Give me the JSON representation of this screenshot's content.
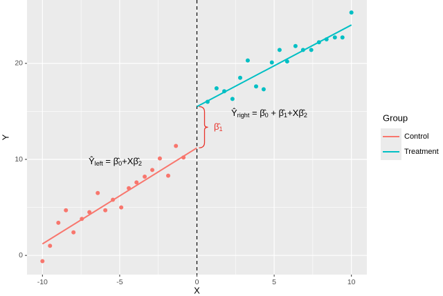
{
  "chart_data": {
    "type": "scatter",
    "x_label": "X",
    "y_label": "Y",
    "xlim": [
      -11,
      11
    ],
    "ylim": [
      -2,
      26.6
    ],
    "xticks": [
      -10,
      -5,
      0,
      5,
      10
    ],
    "yticks": [
      0,
      10,
      20
    ],
    "grid": true,
    "cutoff": 0,
    "legend_title": "Group",
    "legend_position": "right",
    "series": [
      {
        "name": "Control",
        "color": "#F8766D",
        "x": [
          -10,
          -9.51,
          -8.97,
          -8.48,
          -7.99,
          -7.45,
          -6.96,
          -6.42,
          -5.93,
          -5.44,
          -4.9,
          -4.41,
          -3.91,
          -3.38,
          -2.89,
          -2.4,
          -1.86,
          -1.36,
          -0.87
        ],
        "values": [
          -0.6,
          1.0,
          3.4,
          4.7,
          2.4,
          3.8,
          4.5,
          6.5,
          4.7,
          5.8,
          5.0,
          7.0,
          7.6,
          8.2,
          8.9,
          10.1,
          8.3,
          11.4,
          10.2
        ],
        "fit": {
          "x": [
            -10,
            0
          ],
          "y": [
            1.2,
            11.2
          ]
        }
      },
      {
        "name": "Treatment",
        "color": "#00BFC4",
        "x": [
          0.69,
          1.27,
          1.77,
          2.3,
          2.8,
          3.29,
          3.83,
          4.32,
          4.85,
          5.35,
          5.84,
          6.38,
          6.87,
          7.4,
          7.9,
          8.39,
          8.93,
          9.42,
          10
        ],
        "values": [
          16.0,
          17.4,
          17.1,
          16.3,
          18.5,
          20.3,
          17.6,
          17.3,
          20.1,
          21.4,
          20.2,
          21.8,
          21.4,
          21.4,
          22.2,
          22.5,
          22.7,
          22.7,
          25.3
        ],
        "fit": {
          "x": [
            0,
            10
          ],
          "y": [
            15.5,
            24.0
          ]
        }
      }
    ],
    "annotations": [
      {
        "parts": [
          "Ŷ",
          "left",
          " = β̂",
          "0",
          "+Xβ̂",
          "2"
        ]
      },
      {
        "parts": [
          "Ŷ",
          "right",
          " = β̂",
          "0",
          " + β̂",
          "1",
          "+Xβ̂",
          "2"
        ]
      },
      {
        "parts": [
          "β̂",
          "1"
        ],
        "color": "#E8332A"
      }
    ]
  }
}
